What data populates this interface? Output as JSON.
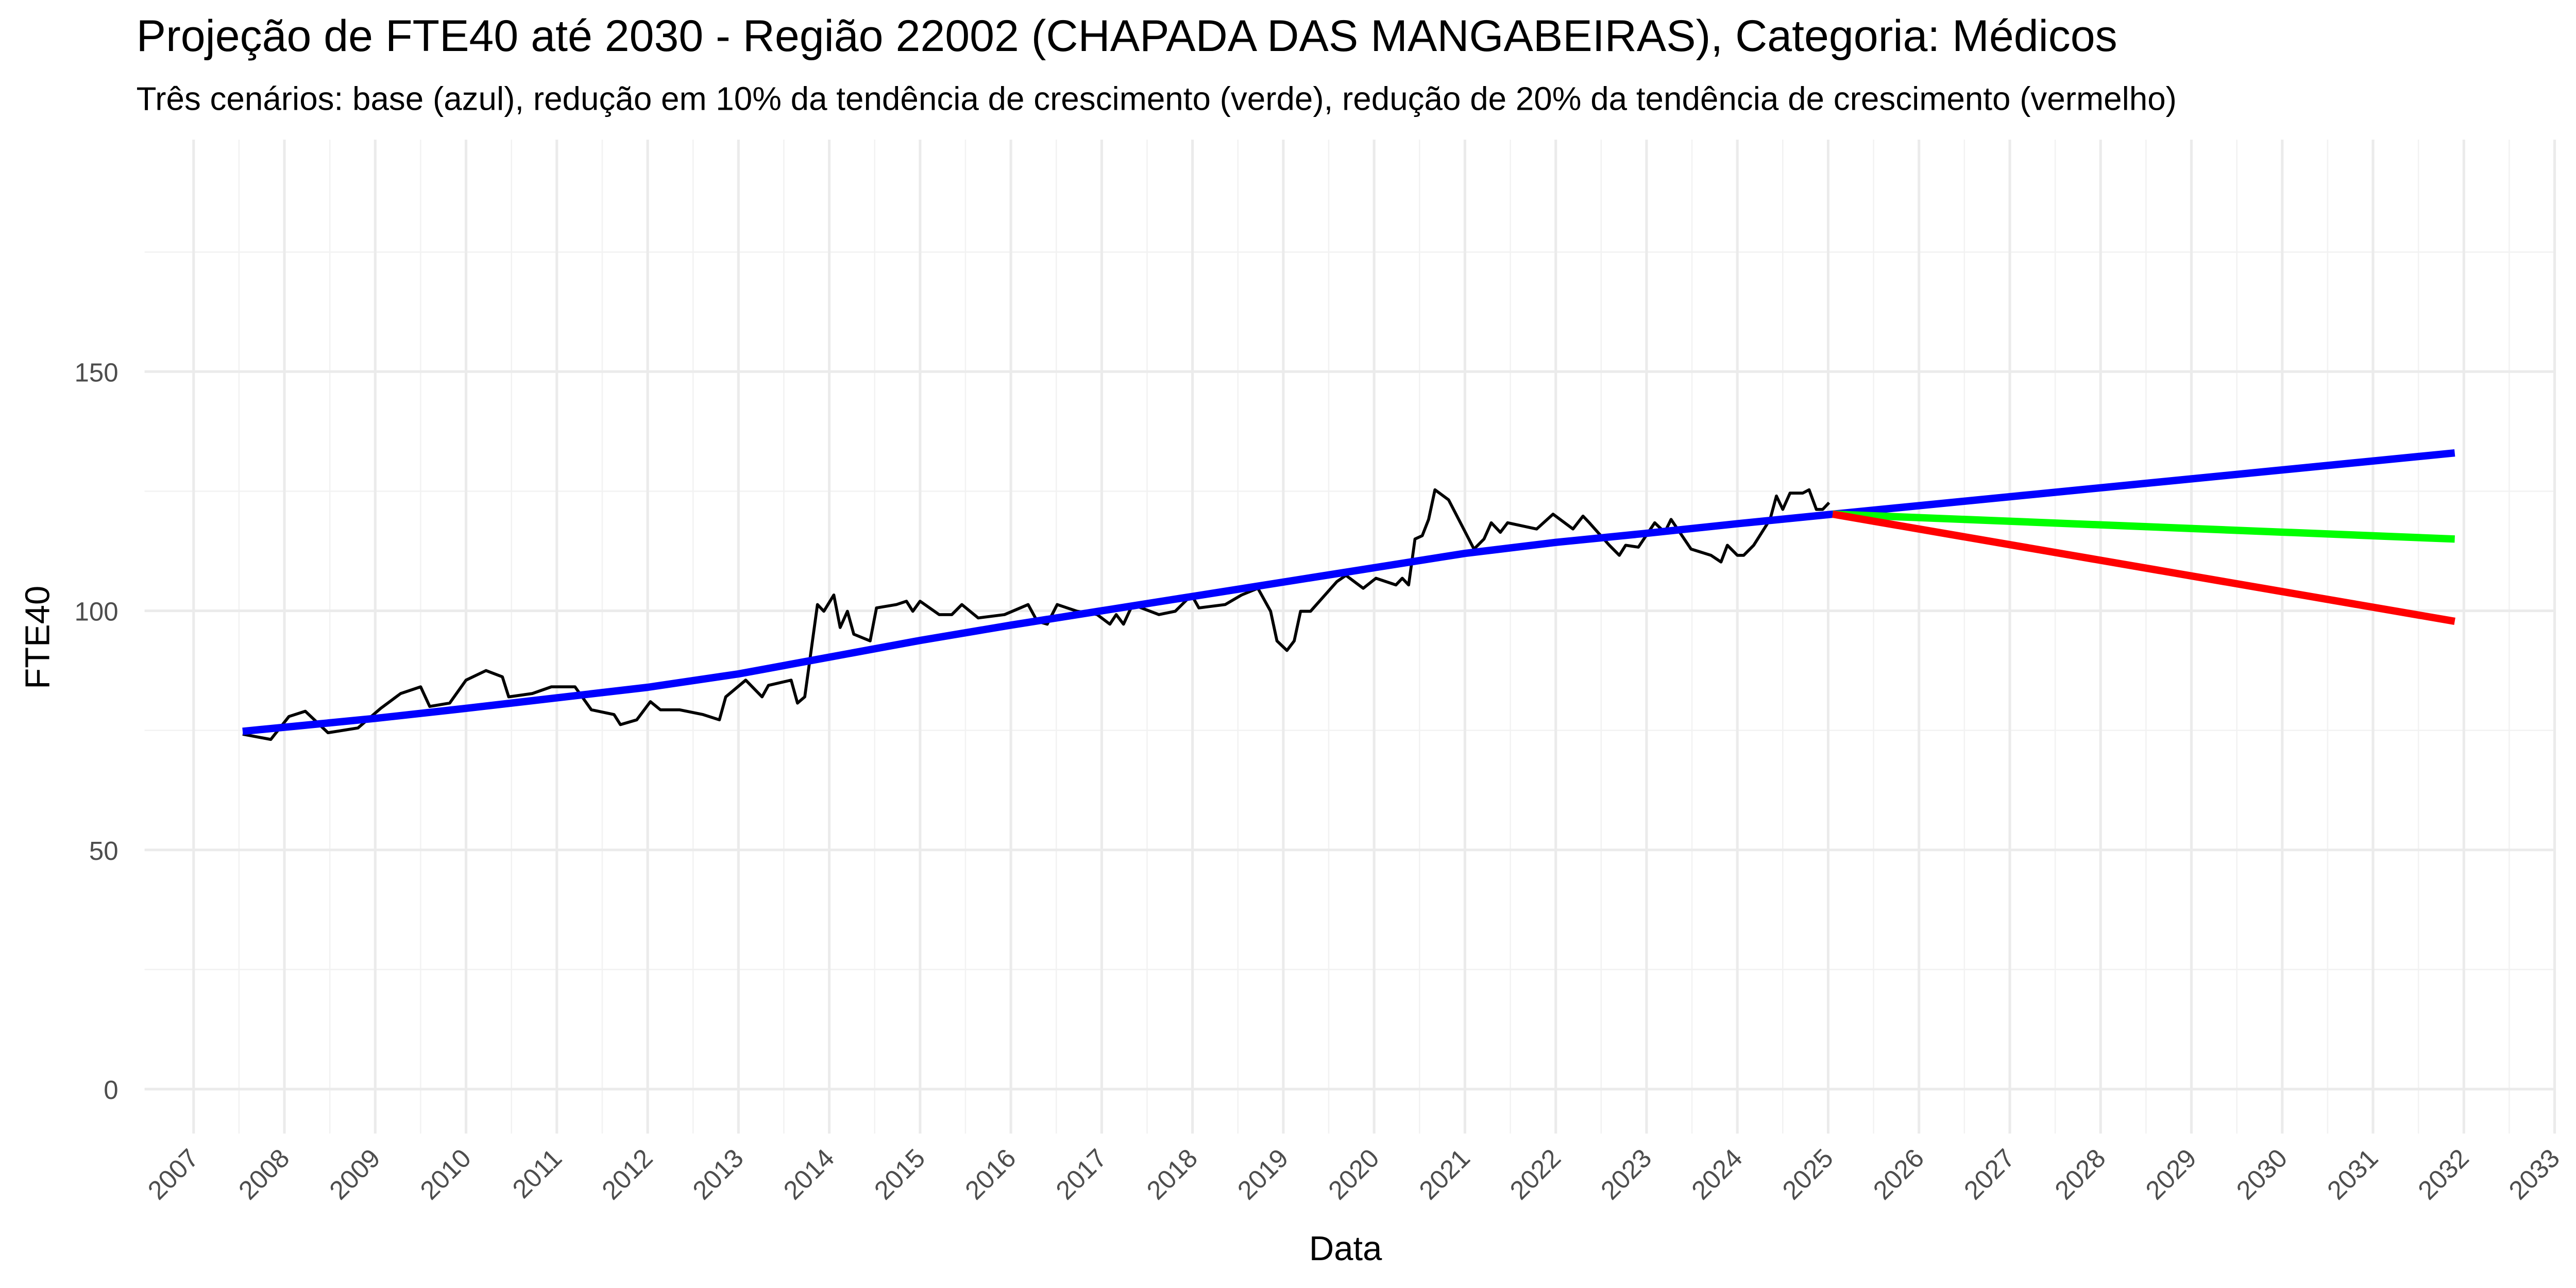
{
  "chart_data": {
    "type": "line",
    "title": "Projeção de FTE40 até 2030 - Região 22002 (CHAPADA DAS MANGABEIRAS), Categoria: Médicos",
    "subtitle": "Três cenários: base (azul), redução em 10% da tendência de crescimento (verde), redução de 20% da tendência de crescimento (vermelho)",
    "x_label": "Data",
    "y_label": "FTE40",
    "xlim": [
      2006.46,
      2033.0
    ],
    "xticks": [
      2007,
      2008,
      2009,
      2010,
      2011,
      2012,
      2013,
      2014,
      2015,
      2016,
      2017,
      2018,
      2019,
      2020,
      2021,
      2022,
      2023,
      2024,
      2025,
      2026,
      2027,
      2028,
      2029,
      2030,
      2031,
      2032,
      2033
    ],
    "ylim": [
      -9.3,
      198.5
    ],
    "yticks": [
      0,
      50,
      100,
      150
    ],
    "grid": true,
    "series": [
      {
        "color": "#000000",
        "x": [
          2007.54,
          2007.85,
          2008.05,
          2008.23,
          2008.48,
          2008.81,
          2009.06,
          2009.28,
          2009.5,
          2009.6,
          2009.82,
          2010.0,
          2010.22,
          2010.4,
          2010.47,
          2010.73,
          2010.94,
          2011.2,
          2011.38,
          2011.63,
          2011.7,
          2011.88,
          2012.03,
          2012.14,
          2012.35,
          2012.61,
          2012.79,
          2012.86,
          2013.08,
          2013.26,
          2013.33,
          2013.58,
          2013.65,
          2013.73,
          2013.87,
          2013.94,
          2014.05,
          2014.12,
          2014.2,
          2014.27,
          2014.45,
          2014.52,
          2014.74,
          2014.85,
          2014.92,
          2015.0,
          2015.21,
          2015.35,
          2015.46,
          2015.64,
          2015.93,
          2016.19,
          2016.29,
          2016.4,
          2016.51,
          2016.73,
          2016.95,
          2017.09,
          2017.16,
          2017.24,
          2017.34,
          2017.63,
          2017.81,
          2017.99,
          2018.07,
          2018.36,
          2018.54,
          2018.72,
          2018.86,
          2018.93,
          2019.04,
          2019.12,
          2019.19,
          2019.3,
          2019.59,
          2019.69,
          2019.88,
          2020.02,
          2020.24,
          2020.31,
          2020.38,
          2020.45,
          2020.53,
          2020.6,
          2020.67,
          2020.82,
          2021.1,
          2021.21,
          2021.29,
          2021.39,
          2021.47,
          2021.79,
          2021.97,
          2022.19,
          2022.3,
          2022.37,
          2022.59,
          2022.7,
          2022.77,
          2022.91,
          2023.09,
          2023.2,
          2023.27,
          2023.49,
          2023.71,
          2023.82,
          2023.89,
          2024.0,
          2024.07,
          2024.18,
          2024.36,
          2024.43,
          2024.5,
          2024.58,
          2024.72,
          2024.79,
          2024.87,
          2024.94,
          2025.01
        ],
        "values": [
          74.2,
          73.1,
          77.9,
          79.0,
          74.5,
          75.5,
          79.6,
          82.7,
          84.1,
          80.0,
          80.7,
          85.5,
          87.5,
          86.2,
          82.0,
          82.7,
          84.1,
          84.1,
          79.3,
          78.3,
          76.2,
          77.2,
          81.0,
          79.3,
          79.3,
          78.3,
          77.2,
          82.0,
          85.5,
          82.0,
          84.4,
          85.5,
          80.7,
          82.0,
          101.3,
          99.9,
          103.3,
          96.5,
          99.9,
          95.1,
          93.7,
          100.6,
          101.3,
          102.0,
          99.9,
          102.0,
          99.2,
          99.2,
          101.3,
          98.5,
          99.2,
          101.3,
          97.8,
          97.2,
          101.3,
          99.9,
          99.2,
          97.2,
          99.2,
          97.2,
          101.3,
          99.2,
          99.9,
          103.3,
          100.6,
          101.3,
          103.3,
          104.7,
          99.9,
          93.7,
          91.7,
          93.7,
          99.9,
          99.9,
          106.1,
          107.4,
          104.7,
          106.8,
          105.4,
          106.8,
          105.4,
          115.0,
          115.7,
          119.1,
          125.3,
          123.2,
          112.9,
          115.0,
          118.4,
          116.4,
          118.4,
          117.1,
          120.2,
          117.1,
          119.8,
          118.4,
          113.7,
          111.6,
          113.7,
          113.3,
          118.4,
          116.4,
          119.1,
          112.9,
          111.6,
          110.2,
          113.7,
          111.6,
          111.6,
          113.7,
          119.1,
          124.0,
          121.2,
          124.6,
          124.6,
          125.3,
          121.2,
          121.2,
          122.6
        ]
      },
      {
        "color": "#0000ff",
        "x": [
          2007.54,
          2009,
          2010,
          2011,
          2012,
          2013,
          2014,
          2015,
          2016,
          2017,
          2018,
          2019,
          2020,
          2021,
          2022,
          2023,
          2024,
          2025.05,
          2031.9
        ],
        "values": [
          74.8,
          77.5,
          79.6,
          81.8,
          84.0,
          86.8,
          90.3,
          93.8,
          97.0,
          100.0,
          103.0,
          106.0,
          109.0,
          112.0,
          114.3,
          116.2,
          118.2,
          120.2,
          133.0
        ]
      },
      {
        "color": "#00ff00",
        "x": [
          2025.05,
          2031.9
        ],
        "values": [
          120.2,
          115.0
        ]
      },
      {
        "color": "#ff0000",
        "x": [
          2025.05,
          2031.9
        ],
        "values": [
          120.2,
          97.8
        ]
      }
    ]
  }
}
